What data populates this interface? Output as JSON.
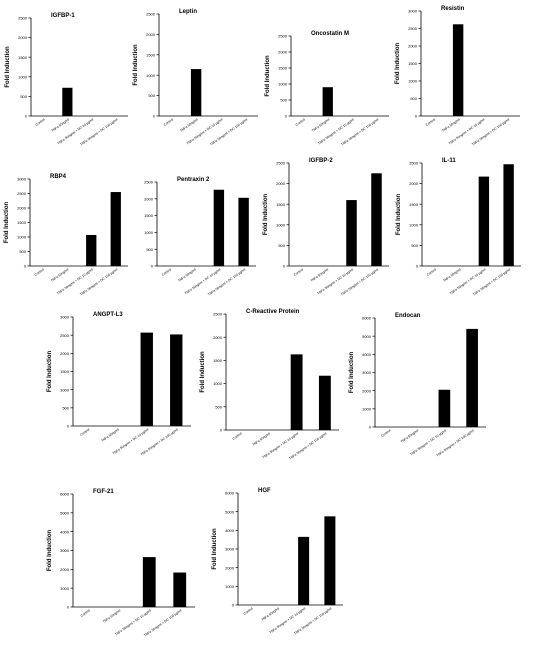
{
  "chart_data": [
    {
      "type": "bar",
      "title": "IGFBP-1",
      "ylabel": "Fold Induction",
      "categories": [
        "Control",
        "TNFα 50ng/ml",
        "TNFα 50ng/ml + DC 10 μg/ml",
        "TNFα 50ng/ml + DC 100 μg/ml"
      ],
      "values": [
        0,
        720,
        0,
        0
      ],
      "ylim": [
        0,
        2500
      ],
      "yticks": [
        0,
        500,
        1000,
        1500,
        2000,
        2500
      ]
    },
    {
      "type": "bar",
      "title": "Leptin",
      "ylabel": "Fold Induction",
      "categories": [
        "Control",
        "TNFα 50ng/ml",
        "TNFα 50ng/ml + DC 10 μg/ml",
        "TNFα 50ng/ml + DC 100 μg/ml"
      ],
      "values": [
        0,
        1150,
        0,
        0
      ],
      "ylim": [
        0,
        2500
      ],
      "yticks": [
        0,
        500,
        1000,
        1500,
        2000,
        2500
      ]
    },
    {
      "type": "bar",
      "title": "Oncostatin M",
      "ylabel": "Fold Induction",
      "categories": [
        "Control",
        "TNFα 50ng/ml",
        "TNFα 50ng/ml + DC 10 μg/ml",
        "TNFα 50ng/ml + DC 100 μg/ml"
      ],
      "values": [
        0,
        900,
        0,
        0
      ],
      "ylim": [
        0,
        2500
      ],
      "yticks": [
        0,
        500,
        1000,
        1500,
        2000,
        2500
      ]
    },
    {
      "type": "bar",
      "title": "Resistin",
      "ylabel": "Fold Induction",
      "categories": [
        "Control",
        "TNFα 50ng/ml",
        "TNFα 50ng/ml + DC 10 μg/ml",
        "TNFα 50ng/ml + DC 100 μg/ml"
      ],
      "values": [
        0,
        2620,
        0,
        0
      ],
      "ylim": [
        0,
        3000
      ],
      "yticks": [
        0,
        500,
        1000,
        1500,
        2000,
        2500,
        3000
      ]
    },
    {
      "type": "bar",
      "title": "RBP4",
      "ylabel": "Fold Induction",
      "categories": [
        "Control",
        "TNFα 50ng/ml",
        "TNFα 50ng/ml + DC 10 μg/ml",
        "TNFα 50ng/ml + DC 100 μg/ml"
      ],
      "values": [
        0,
        0,
        1070,
        2550
      ],
      "ylim": [
        0,
        3000
      ],
      "yticks": [
        0,
        500,
        1000,
        1500,
        2000,
        2500,
        3000
      ]
    },
    {
      "type": "bar",
      "title": "Pentraxin 2",
      "ylabel": "",
      "categories": [
        "Control",
        "TNFα 50ng/ml",
        "TNFα 50ng/ml + DC 10 μg/ml",
        "TNFα 50ng/ml + DC 100 μg/ml"
      ],
      "values": [
        0,
        0,
        2270,
        2030
      ],
      "ylim": [
        0,
        2500
      ],
      "yticks": [
        0,
        500,
        1000,
        1500,
        2000,
        2500
      ]
    },
    {
      "type": "bar",
      "title": "IGFBP-2",
      "ylabel": "Fold Induction",
      "categories": [
        "Control",
        "TNFα 50ng/ml",
        "TNFα 50ng/ml + DC 10 μg/ml",
        "TNFα 50ng/ml + DC 100 μg/ml"
      ],
      "values": [
        0,
        0,
        1600,
        2250
      ],
      "ylim": [
        0,
        2500
      ],
      "yticks": [
        0,
        500,
        1000,
        1500,
        2000,
        2500
      ]
    },
    {
      "type": "bar",
      "title": "IL-11",
      "ylabel": "Fold Induction",
      "categories": [
        "Control",
        "TNFα 50ng/ml",
        "TNFα 50ng/ml + DC 10 μg/ml",
        "TNFα 50ng/ml + DC 100 μg/ml"
      ],
      "values": [
        0,
        0,
        2170,
        2470
      ],
      "ylim": [
        0,
        2500
      ],
      "yticks": [
        0,
        500,
        1000,
        1500,
        2000,
        2500
      ]
    },
    {
      "type": "bar",
      "title": "ANGPT-L3",
      "ylabel": "Fold Induction",
      "categories": [
        "Control",
        "TNFα 50ng/ml",
        "TNFα 50ng/ml + DC 10 μg/ml",
        "TNFα 50ng/ml + DC 100 μg/ml"
      ],
      "values": [
        0,
        0,
        2570,
        2520
      ],
      "ylim": [
        0,
        3000
      ],
      "yticks": [
        0,
        500,
        1000,
        1500,
        2000,
        2500,
        3000
      ]
    },
    {
      "type": "bar",
      "title": "C-Reactive Protein",
      "ylabel": "Fold Induction",
      "categories": [
        "Control",
        "TNFα 50ng/ml",
        "TNFα 50ng/ml + DC 10 μg/ml",
        "TNFα 50ng/ml + DC 100 μg/ml"
      ],
      "values": [
        0,
        0,
        1630,
        1170
      ],
      "ylim": [
        0,
        2500
      ],
      "yticks": [
        0,
        500,
        1000,
        1500,
        2000,
        2500
      ]
    },
    {
      "type": "bar",
      "title": "Endocan",
      "ylabel": "Fold Induction",
      "categories": [
        "Control",
        "TNFα 50ng/ml",
        "TNFα 50ng/ml + DC 10 μg/ml",
        "TNFα 50ng/ml + DC 100 μg/ml"
      ],
      "values": [
        0,
        0,
        2050,
        5400
      ],
      "ylim": [
        0,
        6000
      ],
      "yticks": [
        0,
        1000,
        2000,
        3000,
        4000,
        5000,
        6000
      ]
    },
    {
      "type": "bar",
      "title": "FGF-21",
      "ylabel": "Fold Induction",
      "categories": [
        "Control",
        "TNFα 50ng/ml",
        "TNFα 50ng/ml + DC 10 μg/ml",
        "TNFα 50ng/ml + DC 100 μg/ml"
      ],
      "values": [
        0,
        0,
        2650,
        1830
      ],
      "ylim": [
        0,
        6000
      ],
      "yticks": [
        0,
        1000,
        2000,
        3000,
        4000,
        5000,
        6000
      ]
    },
    {
      "type": "bar",
      "title": "HGF",
      "ylabel": "Fold Induction",
      "categories": [
        "Control",
        "TNFα 50ng/ml",
        "TNFα 50ng/ml + DC 10 μg/ml",
        "TNFα 50ng/ml + DC 100 μg/ml"
      ],
      "values": [
        0,
        0,
        3650,
        4750
      ],
      "ylim": [
        0,
        6000
      ],
      "yticks": [
        0,
        1000,
        2000,
        3000,
        4000,
        5000,
        6000
      ]
    }
  ]
}
